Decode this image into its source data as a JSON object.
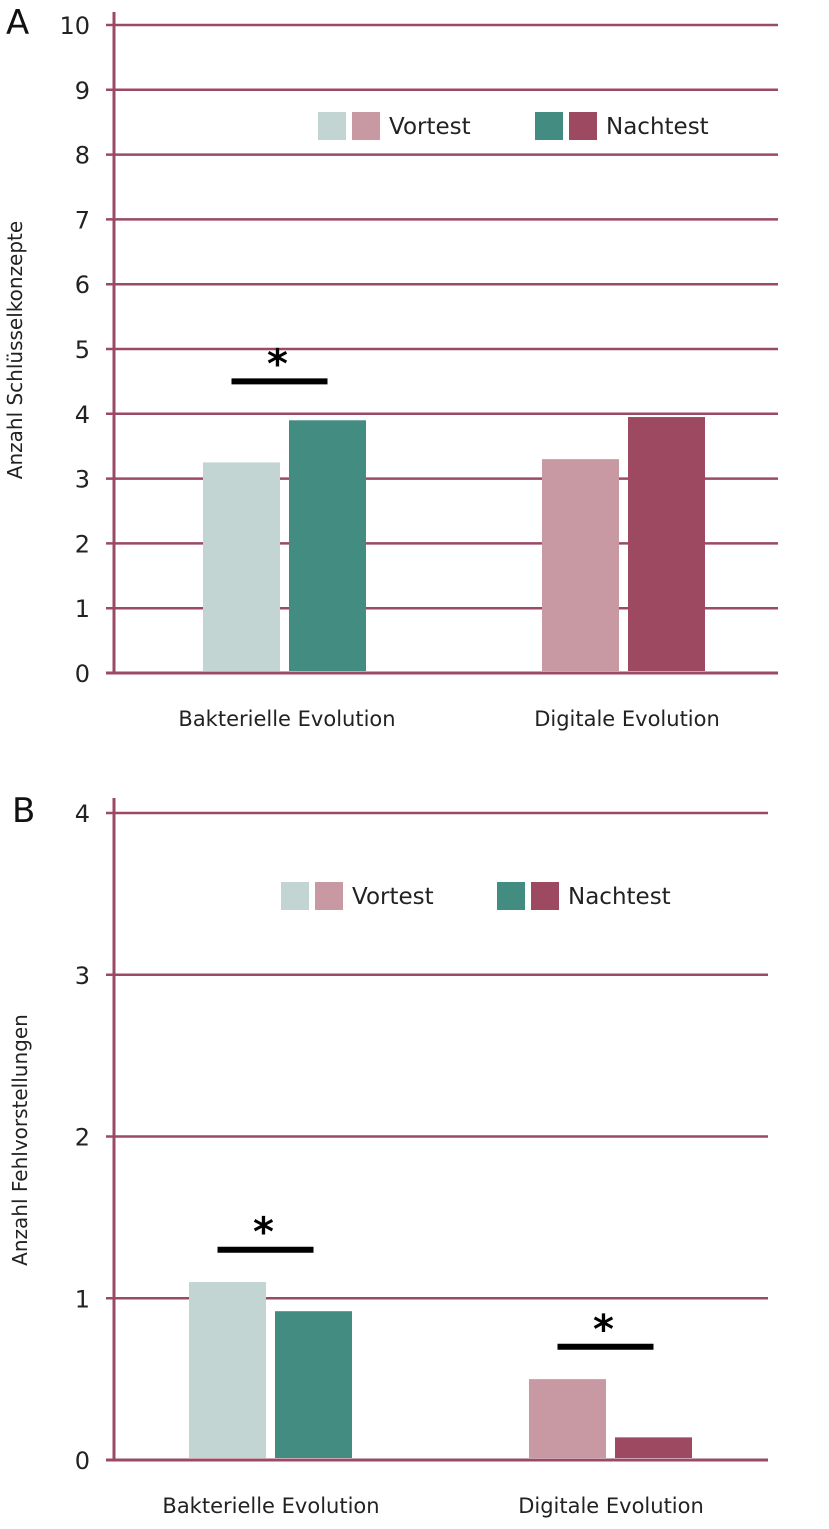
{
  "colors": {
    "axis": "#9a4a64",
    "bacterial_pre": "#c2d5d3",
    "bacterial_post": "#428c82",
    "digital_pre": "#c899a2",
    "digital_post": "#9c4961",
    "significance": "#000000"
  },
  "chart_data": [
    {
      "panel": "A",
      "type": "bar",
      "ylabel": "Anzahl Schlüsselkonzepte",
      "ylim": [
        0,
        10
      ],
      "yticks": [
        "0",
        "1",
        "2",
        "3",
        "4",
        "5",
        "6",
        "7",
        "8",
        "9",
        "10"
      ],
      "categories": [
        "Bakterielle Evolution",
        "Digitale Evolution"
      ],
      "series": [
        {
          "name": "Vortest",
          "values": [
            3.25,
            3.3
          ]
        },
        {
          "name": "Nachtest",
          "values": [
            3.9,
            3.95
          ]
        }
      ],
      "legend": {
        "pre_label": "Vortest",
        "post_label": "Nachtest",
        "position": "top-center"
      },
      "significance": [
        {
          "category": "Bakterielle Evolution",
          "marker": "*",
          "level": 4.5
        }
      ]
    },
    {
      "panel": "B",
      "type": "bar",
      "ylabel": "Anzahl Fehlvorstellungen",
      "ylim": [
        0,
        4
      ],
      "yticks": [
        "0",
        "1",
        "2",
        "3",
        "4"
      ],
      "categories": [
        "Bakterielle Evolution",
        "Digitale Evolution"
      ],
      "series": [
        {
          "name": "Vortest",
          "values": [
            1.1,
            0.5
          ]
        },
        {
          "name": "Nachtest",
          "values": [
            0.92,
            0.14
          ]
        }
      ],
      "legend": {
        "pre_label": "Vortest",
        "post_label": "Nachtest",
        "position": "top-center"
      },
      "significance": [
        {
          "category": "Bakterielle Evolution",
          "marker": "*",
          "level": 1.3
        },
        {
          "category": "Digitale Evolution",
          "marker": "*",
          "level": 0.7
        }
      ]
    }
  ]
}
